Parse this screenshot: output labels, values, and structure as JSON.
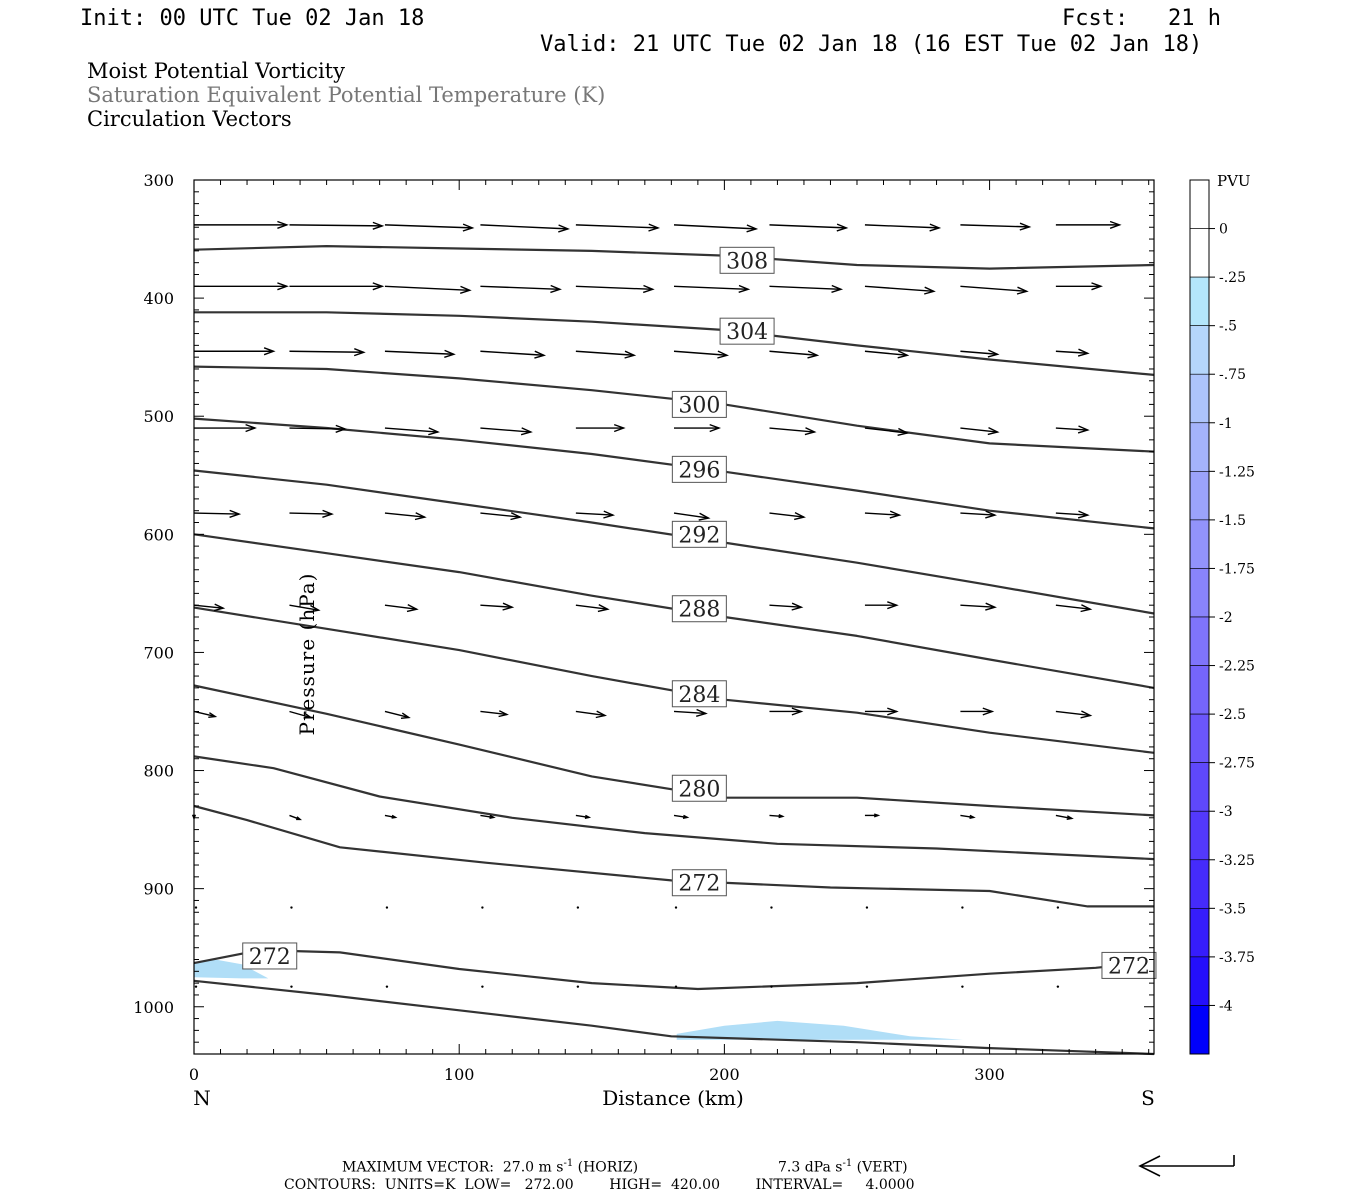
{
  "header": {
    "init": "Init: 00 UTC Tue 02 Jan 18",
    "fcst": "Fcst:   21 h",
    "valid": "Valid: 21 UTC Tue 02 Jan 18 (16 EST Tue 02 Jan 18)"
  },
  "titles": {
    "line1": "Moist Potential Vorticity",
    "line2": "Saturation Equivalent Potential Temperature (K)",
    "line3": "Circulation Vectors"
  },
  "footer": {
    "max_vector_label": "MAXIMUM VECTOR:",
    "max_vector_horiz": "27.0 m s",
    "horiz_tag": "(HORIZ)",
    "max_vector_vert": "7.3 dPa s",
    "vert_tag": "(VERT)",
    "exponent": "-1",
    "contours_line": "CONTOURS:  UNITS=K  LOW=   272.00        HIGH=  420.00        INTERVAL=     4.0000"
  },
  "colors": {
    "contour": "#333333",
    "pv_light": "#b0def7",
    "pv_dark": "#0000ff"
  },
  "chart_data": {
    "type": "cross-section",
    "xlabel": "Distance (km)",
    "ylabel": "Pressure (hPa)",
    "xlim": [
      0,
      362
    ],
    "ylim": [
      1040,
      300
    ],
    "x_ticks": [
      0,
      100,
      200,
      300
    ],
    "y_ticks": [
      300,
      400,
      500,
      600,
      700,
      800,
      900,
      1000
    ],
    "x_end_labels": {
      "left": "N",
      "right": "S"
    },
    "colorbar": {
      "title": "PVU",
      "labels": [
        "0",
        "-.25",
        "-.5",
        "-.75",
        "-1",
        "-1.25",
        "-1.5",
        "-1.75",
        "-2",
        "-2.25",
        "-2.5",
        "-2.75",
        "-3",
        "-3.25",
        "-3.5",
        "-3.75",
        "-4"
      ],
      "colors": [
        "#ffffff",
        "#ffffff",
        "#b4e6fb",
        "#b5d6fb",
        "#adc4fb",
        "#a4b3fb",
        "#9ba3fb",
        "#9293fb",
        "#8984fb",
        "#7f74fb",
        "#7565fb",
        "#6b56fb",
        "#5f48fb",
        "#5339fb",
        "#452bfb",
        "#361dfb",
        "#240ffb",
        "#0000fb"
      ]
    },
    "contours": [
      {
        "label": "308",
        "points": [
          [
            0,
            359
          ],
          [
            50,
            356
          ],
          [
            100,
            358
          ],
          [
            150,
            360
          ],
          [
            200,
            364
          ],
          [
            250,
            372
          ],
          [
            300,
            375
          ],
          [
            362,
            372
          ]
        ]
      },
      {
        "label": "304",
        "points": [
          [
            0,
            412
          ],
          [
            50,
            412
          ],
          [
            100,
            415
          ],
          [
            150,
            420
          ],
          [
            200,
            427
          ],
          [
            250,
            440
          ],
          [
            300,
            452
          ],
          [
            362,
            465
          ]
        ]
      },
      {
        "label": "300",
        "points": [
          [
            0,
            458
          ],
          [
            50,
            460
          ],
          [
            100,
            468
          ],
          [
            150,
            478
          ],
          [
            200,
            490
          ],
          [
            250,
            508
          ],
          [
            300,
            523
          ],
          [
            362,
            530
          ]
        ]
      },
      {
        "label": "296",
        "points": [
          [
            0,
            502
          ],
          [
            50,
            510
          ],
          [
            100,
            520
          ],
          [
            150,
            532
          ],
          [
            200,
            547
          ],
          [
            250,
            563
          ],
          [
            300,
            580
          ],
          [
            362,
            595
          ]
        ]
      },
      {
        "label": "292",
        "points": [
          [
            0,
            546
          ],
          [
            50,
            558
          ],
          [
            100,
            574
          ],
          [
            150,
            590
          ],
          [
            200,
            607
          ],
          [
            250,
            624
          ],
          [
            300,
            643
          ],
          [
            362,
            667
          ]
        ]
      },
      {
        "label": "288",
        "points": [
          [
            0,
            600
          ],
          [
            50,
            616
          ],
          [
            100,
            632
          ],
          [
            150,
            652
          ],
          [
            200,
            670
          ],
          [
            250,
            686
          ],
          [
            300,
            706
          ],
          [
            362,
            730
          ]
        ]
      },
      {
        "label": "284",
        "points": [
          [
            0,
            662
          ],
          [
            50,
            680
          ],
          [
            100,
            698
          ],
          [
            150,
            720
          ],
          [
            200,
            740
          ],
          [
            250,
            751
          ],
          [
            300,
            768
          ],
          [
            362,
            785
          ]
        ]
      },
      {
        "label": "280",
        "points": [
          [
            0,
            728
          ],
          [
            50,
            752
          ],
          [
            100,
            778
          ],
          [
            150,
            805
          ],
          [
            200,
            823
          ],
          [
            250,
            823
          ],
          [
            300,
            830
          ],
          [
            362,
            838
          ]
        ]
      },
      {
        "label": "",
        "points": [
          [
            0,
            788
          ],
          [
            30,
            798
          ],
          [
            70,
            822
          ],
          [
            120,
            840
          ],
          [
            170,
            853
          ],
          [
            220,
            862
          ],
          [
            280,
            866
          ],
          [
            362,
            875
          ]
        ]
      },
      {
        "label": "272",
        "points": [
          [
            0,
            830
          ],
          [
            20,
            842
          ],
          [
            55,
            865
          ],
          [
            110,
            878
          ],
          [
            180,
            893
          ],
          [
            240,
            899
          ],
          [
            300,
            902
          ],
          [
            337,
            915
          ],
          [
            362,
            915
          ]
        ]
      },
      {
        "label": "272",
        "points": [
          [
            0,
            963
          ],
          [
            25,
            952
          ],
          [
            55,
            954
          ],
          [
            100,
            968
          ],
          [
            150,
            980
          ],
          [
            190,
            985
          ],
          [
            250,
            980
          ],
          [
            300,
            972
          ],
          [
            340,
            967
          ],
          [
            362,
            962
          ]
        ]
      },
      {
        "label": "",
        "points": [
          [
            0,
            978
          ],
          [
            50,
            990
          ],
          [
            100,
            1003
          ],
          [
            150,
            1016
          ],
          [
            180,
            1025
          ],
          [
            250,
            1030
          ],
          [
            300,
            1035
          ],
          [
            362,
            1040
          ]
        ]
      }
    ],
    "contour_labels": [
      {
        "text": "308",
        "x": 198,
        "y": 368
      },
      {
        "text": "304",
        "x": 198,
        "y": 428
      },
      {
        "text": "300",
        "x": 180,
        "y": 490
      },
      {
        "text": "296",
        "x": 180,
        "y": 545
      },
      {
        "text": "292",
        "x": 180,
        "y": 600
      },
      {
        "text": "288",
        "x": 180,
        "y": 663
      },
      {
        "text": "284",
        "x": 180,
        "y": 735
      },
      {
        "text": "280",
        "x": 180,
        "y": 815
      },
      {
        "text": "272",
        "x": 180,
        "y": 895
      },
      {
        "text": "272",
        "x": 18,
        "y": 957
      },
      {
        "text": "272",
        "x": 342,
        "y": 965
      }
    ],
    "pv_regions": [
      {
        "value": -0.25,
        "points": [
          [
            0,
            963
          ],
          [
            8,
            960
          ],
          [
            18,
            964
          ],
          [
            28,
            976
          ],
          [
            18,
            976
          ],
          [
            0,
            975
          ]
        ]
      },
      {
        "value": -0.25,
        "points": [
          [
            182,
            1023
          ],
          [
            200,
            1016
          ],
          [
            220,
            1012
          ],
          [
            245,
            1016
          ],
          [
            270,
            1025
          ],
          [
            290,
            1028
          ],
          [
            182,
            1028
          ]
        ]
      }
    ],
    "vectors": {
      "x": [
        0,
        36,
        72,
        108,
        144,
        181,
        217,
        253,
        289,
        325
      ],
      "rows": [
        {
          "p": 338,
          "dx": [
            35,
            35,
            33,
            33,
            31,
            31,
            29,
            28,
            26,
            24
          ],
          "dy": [
            0,
            1,
            3,
            4,
            3,
            4,
            3,
            3,
            2,
            0
          ]
        },
        {
          "p": 390,
          "dx": [
            35,
            35,
            32,
            30,
            29,
            28,
            27,
            26,
            25,
            17
          ],
          "dy": [
            0,
            0,
            4,
            3,
            3,
            3,
            3,
            5,
            5,
            0
          ]
        },
        {
          "p": 445,
          "dx": [
            30,
            28,
            26,
            24,
            22,
            20,
            18,
            16,
            14,
            12
          ],
          "dy": [
            0,
            1,
            3,
            4,
            4,
            4,
            4,
            4,
            3,
            2
          ]
        },
        {
          "p": 510,
          "dx": [
            23,
            21,
            20,
            19,
            18,
            17,
            17,
            16,
            14,
            12
          ],
          "dy": [
            0,
            1,
            4,
            4,
            0,
            0,
            4,
            5,
            4,
            2
          ]
        },
        {
          "p": 582,
          "dx": [
            17,
            16,
            15,
            15,
            14,
            13,
            13,
            13,
            13,
            12
          ],
          "dy": [
            1,
            1,
            4,
            4,
            2,
            5,
            4,
            2,
            2,
            2
          ]
        },
        {
          "p": 660,
          "dx": [
            11,
            11,
            12,
            12,
            12,
            12,
            12,
            12,
            13,
            13
          ],
          "dy": [
            3,
            5,
            4,
            2,
            4,
            2,
            2,
            0,
            2,
            4
          ]
        },
        {
          "p": 750,
          "dx": [
            8,
            8,
            9,
            10,
            11,
            12,
            12,
            12,
            12,
            13
          ],
          "dy": [
            5,
            6,
            6,
            3,
            4,
            2,
            0,
            0,
            0,
            4
          ]
        },
        {
          "p": 838,
          "dx": [
            0,
            4,
            4,
            5,
            5,
            5,
            5,
            5,
            5,
            6
          ],
          "dy": [
            3,
            4,
            2,
            2,
            2,
            2,
            1,
            0,
            2,
            3
          ]
        },
        {
          "p": 916,
          "dx": [
            0,
            1,
            1,
            1,
            1,
            1,
            0,
            0,
            0,
            0
          ],
          "dy": [
            0,
            1,
            1,
            1,
            1,
            1,
            1,
            1,
            1,
            0
          ]
        },
        {
          "p": 983,
          "dx": [
            0,
            1,
            1,
            1,
            1,
            0,
            0,
            0,
            0,
            0
          ],
          "dy": [
            0,
            0,
            0,
            0,
            0,
            0,
            0,
            0,
            0,
            0
          ]
        }
      ]
    }
  }
}
